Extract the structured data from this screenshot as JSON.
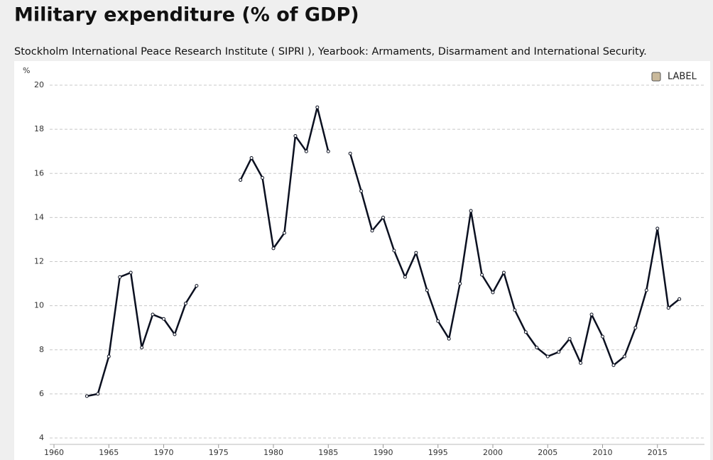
{
  "chart_data": {
    "type": "line",
    "title": "Military expenditure (% of GDP)",
    "subtitle": "Stockholm International Peace Research Institute ( SIPRI ), Yearbook: Armaments, Disarmament and International Security.",
    "y_label": "%",
    "x": [
      1963,
      1964,
      1965,
      1966,
      1967,
      1968,
      1969,
      1970,
      1971,
      1972,
      1973,
      1974,
      1975,
      1976,
      1977,
      1978,
      1979,
      1980,
      1981,
      1982,
      1983,
      1984,
      1985,
      1986,
      1987,
      1988,
      1989,
      1990,
      1991,
      1992,
      1993,
      1994,
      1995,
      1996,
      1997,
      1998,
      1999,
      2000,
      2001,
      2002,
      2003,
      2004,
      2005,
      2006,
      2007,
      2008,
      2009,
      2010,
      2011,
      2012,
      2013,
      2014,
      2015,
      2016,
      2017
    ],
    "series": [
      {
        "name": "LABEL",
        "color": "#0b1020",
        "legend_color": "#c9b99b",
        "values": [
          5.9,
          6.0,
          7.7,
          11.3,
          11.5,
          8.1,
          9.6,
          9.4,
          8.7,
          10.1,
          10.9,
          null,
          null,
          null,
          15.7,
          16.7,
          15.8,
          12.6,
          13.3,
          17.7,
          17.0,
          19.0,
          17.0,
          null,
          16.9,
          15.2,
          13.4,
          14.0,
          12.5,
          11.3,
          12.4,
          10.7,
          9.3,
          8.5,
          11.0,
          14.3,
          11.4,
          10.6,
          11.5,
          9.8,
          8.8,
          8.1,
          7.7,
          7.9,
          8.5,
          7.4,
          9.6,
          8.6,
          7.3,
          7.7,
          9.0,
          10.7,
          13.5,
          9.9,
          10.3
        ]
      }
    ],
    "xlim": [
      1960,
      2020
    ],
    "xticks": [
      1960,
      1965,
      1970,
      1975,
      1980,
      1985,
      1990,
      1995,
      2000,
      2005,
      2010,
      2015
    ],
    "ylim": [
      4,
      20
    ],
    "yticks": [
      4,
      6,
      8,
      10,
      12,
      14,
      16,
      18,
      20
    ],
    "grid": true,
    "legend": "top-right"
  }
}
